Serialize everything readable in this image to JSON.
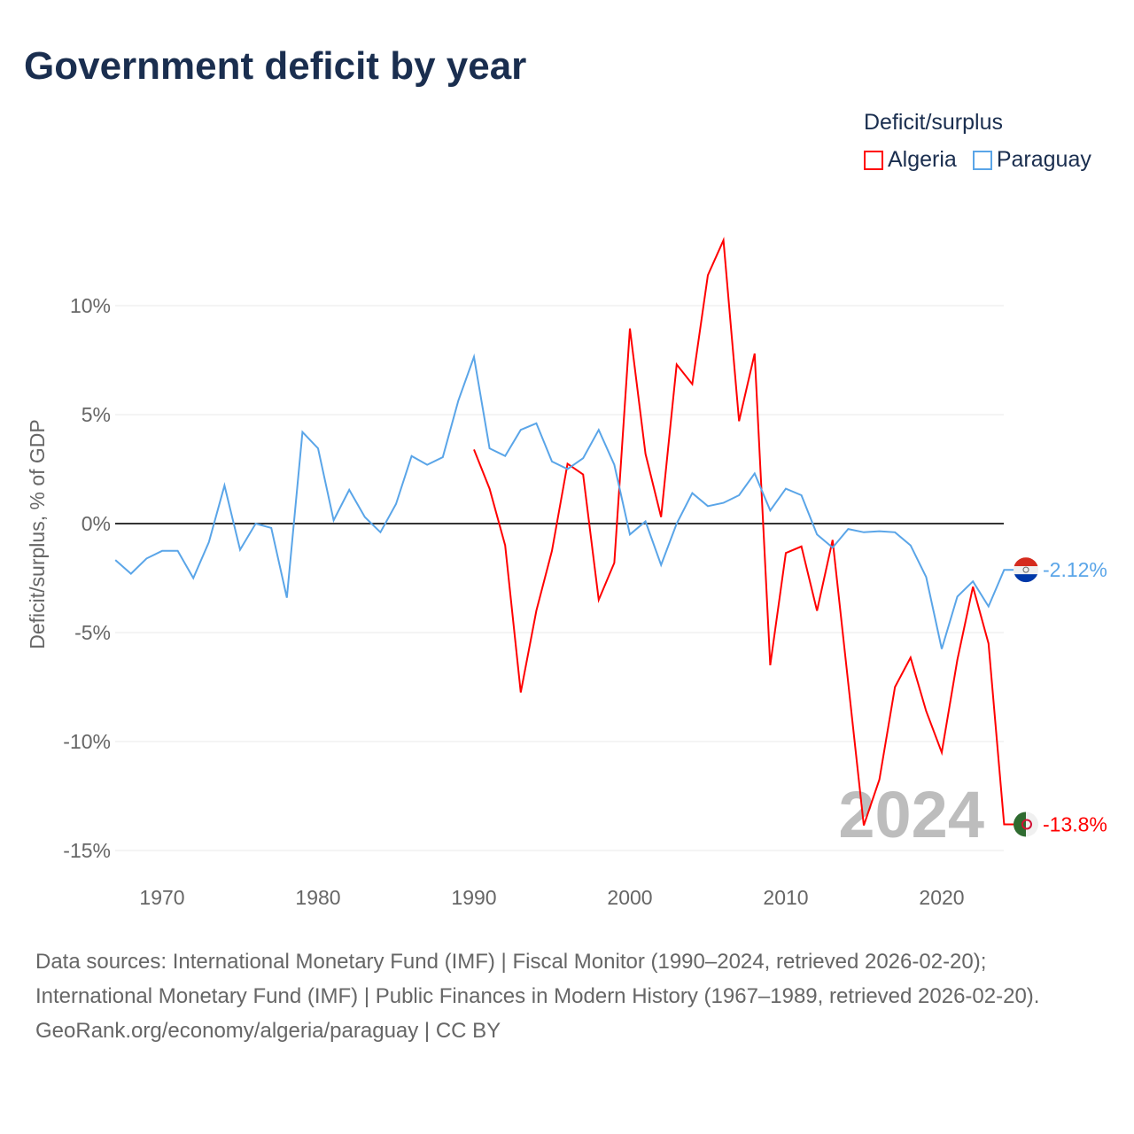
{
  "chart_data": {
    "type": "line",
    "title": "Government deficit by year",
    "ylabel": "Deficit/surplus, % of GDP",
    "xlabel": "",
    "xlim": [
      1967,
      2024
    ],
    "ylim": [
      -16,
      14
    ],
    "yticks": [
      10,
      5,
      0,
      -5,
      -10,
      -15
    ],
    "ytick_labels": [
      "10%",
      "5%",
      "0%",
      "-5%",
      "-10%",
      "-15%"
    ],
    "xticks": [
      1970,
      1980,
      1990,
      2000,
      2010,
      2020
    ],
    "xtick_labels": [
      "1970",
      "1980",
      "1990",
      "2000",
      "2010",
      "2020"
    ],
    "grid": true,
    "legend_title": "Deficit/surplus",
    "legend_position": "top-right",
    "watermark_year": "2024",
    "series": [
      {
        "name": "Algeria",
        "color": "#ff0000",
        "end_label": "-13.8%",
        "start_year": 1990,
        "values": [
          3.4,
          1.6,
          -1.0,
          -7.75,
          -4.0,
          -1.25,
          2.75,
          2.25,
          -3.5,
          -1.8,
          8.95,
          3.2,
          0.3,
          7.3,
          6.4,
          11.4,
          13.0,
          4.7,
          7.8,
          -6.5,
          -1.35,
          -1.05,
          -4.0,
          -0.75,
          -7.3,
          -13.85,
          -11.75,
          -7.5,
          -6.15,
          -8.6,
          -10.5,
          -6.25,
          -2.9,
          -5.5,
          -13.8
        ]
      },
      {
        "name": "Paraguay",
        "color": "#5aa5e8",
        "end_label": "-2.12%",
        "start_year": 1967,
        "values": [
          -1.67,
          -2.3,
          -1.6,
          -1.25,
          -1.25,
          -2.5,
          -0.85,
          1.75,
          -1.2,
          0,
          -0.2,
          -3.4,
          4.2,
          3.45,
          0.15,
          1.55,
          0.3,
          -0.4,
          0.9,
          3.1,
          2.7,
          3.05,
          5.65,
          7.65,
          3.45,
          3.1,
          4.3,
          4.6,
          2.85,
          2.5,
          3.0,
          4.3,
          2.7,
          -0.5,
          0.1,
          -1.9,
          0,
          1.4,
          0.8,
          0.95,
          1.3,
          2.3,
          0.6,
          1.6,
          1.3,
          -0.5,
          -1.1,
          -0.25,
          -0.4,
          -0.35,
          -0.4,
          -1.0,
          -2.45,
          -5.75,
          -3.35,
          -2.65,
          -3.8,
          -2.12
        ]
      }
    ]
  },
  "footer": {
    "sources": "Data sources: International Monetary Fund (IMF) | Fiscal Monitor (1990–2024, retrieved 2026-02-20); International Monetary Fund (IMF) | Public Finances in Modern History (1967–1989, retrieved 2026-02-20).",
    "credit": "GeoRank.org/economy/algeria/paraguay | CC BY"
  }
}
